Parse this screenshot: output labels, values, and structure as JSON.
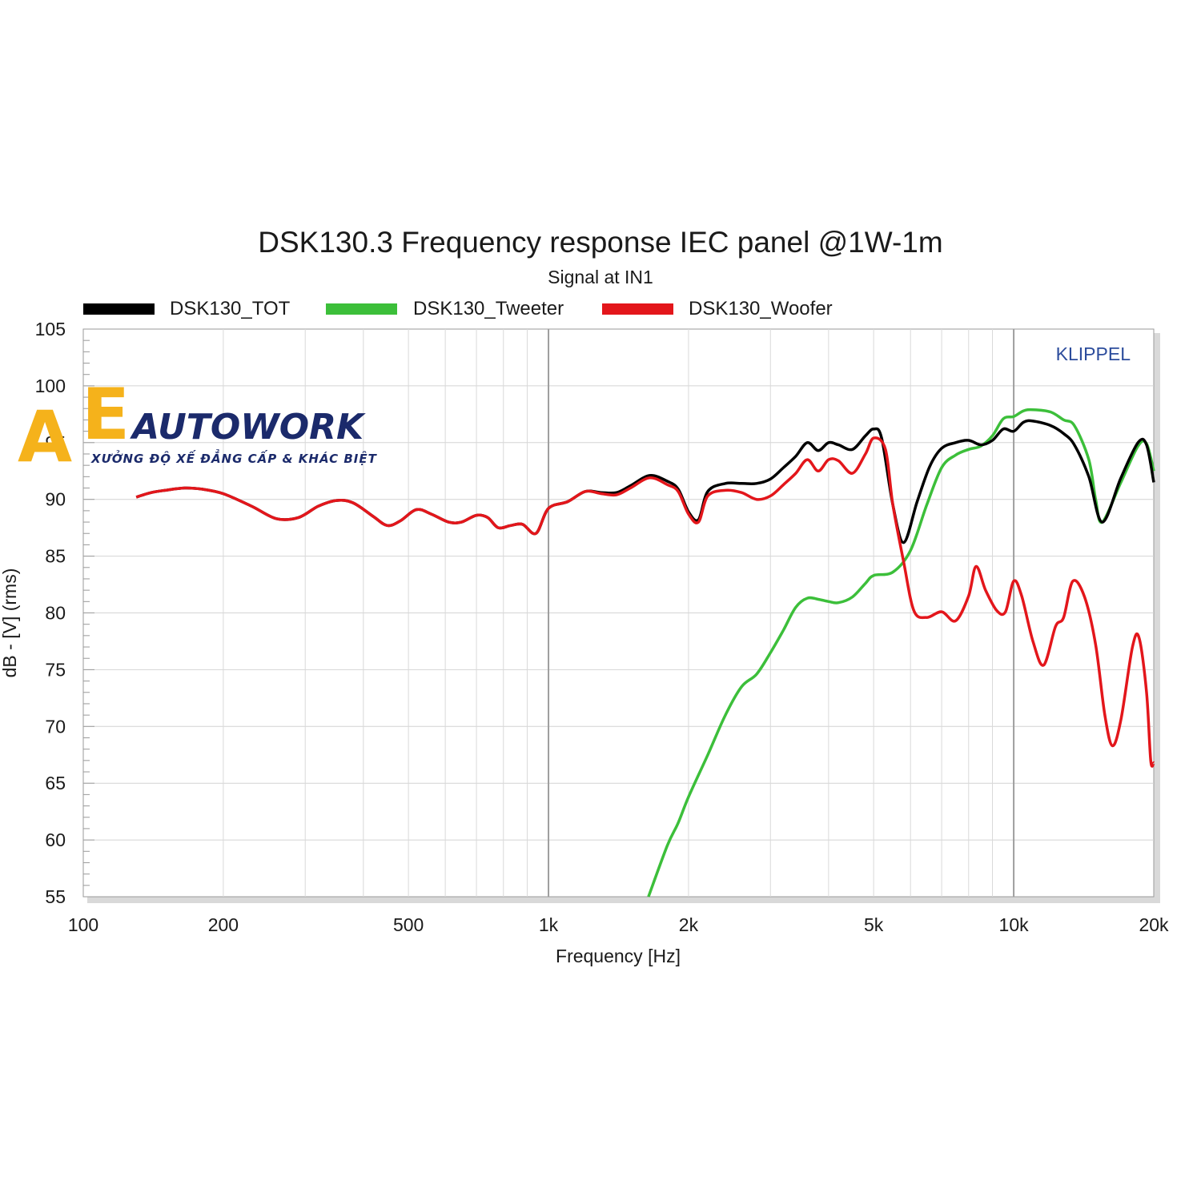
{
  "chart_data": {
    "type": "line",
    "title": "DSK130.3 Frequency response IEC panel @1W-1m",
    "subtitle": "Signal at IN1",
    "xlabel": "Frequency [Hz]",
    "ylabel": "dB - [V]  (rms)",
    "x_scale": "log",
    "xlim": [
      100,
      20000
    ],
    "ylim": [
      55,
      105
    ],
    "x_ticks": [
      100,
      200,
      500,
      1000,
      2000,
      5000,
      10000,
      20000
    ],
    "x_tick_labels": [
      "100",
      "200",
      "500",
      "1k",
      "2k",
      "5k",
      "10k",
      "20k"
    ],
    "y_ticks": [
      55,
      60,
      65,
      70,
      75,
      80,
      85,
      90,
      95,
      100,
      105
    ],
    "y_tick_labels": [
      "55",
      "60",
      "65",
      "70",
      "75",
      "80",
      "85",
      "90",
      "95",
      "100",
      "105"
    ],
    "grid": true,
    "legend_position": "top",
    "annotation": "KLIPPEL",
    "series": [
      {
        "name": "DSK130_TOT",
        "color": "#000000",
        "points": [
          [
            130,
            90.2
          ],
          [
            140,
            90.6
          ],
          [
            150,
            90.8
          ],
          [
            165,
            91.0
          ],
          [
            180,
            90.9
          ],
          [
            200,
            90.5
          ],
          [
            230,
            89.4
          ],
          [
            260,
            88.3
          ],
          [
            290,
            88.4
          ],
          [
            320,
            89.4
          ],
          [
            350,
            89.9
          ],
          [
            380,
            89.7
          ],
          [
            420,
            88.5
          ],
          [
            450,
            87.7
          ],
          [
            480,
            88.1
          ],
          [
            520,
            89.1
          ],
          [
            560,
            88.7
          ],
          [
            610,
            88.0
          ],
          [
            650,
            88.0
          ],
          [
            700,
            88.6
          ],
          [
            740,
            88.4
          ],
          [
            780,
            87.5
          ],
          [
            830,
            87.7
          ],
          [
            880,
            87.8
          ],
          [
            940,
            87.0
          ],
          [
            1000,
            89.2
          ],
          [
            1100,
            89.8
          ],
          [
            1200,
            90.7
          ],
          [
            1300,
            90.6
          ],
          [
            1400,
            90.6
          ],
          [
            1500,
            91.2
          ],
          [
            1650,
            92.1
          ],
          [
            1800,
            91.6
          ],
          [
            1900,
            90.9
          ],
          [
            2000,
            88.9
          ],
          [
            2100,
            88.2
          ],
          [
            2200,
            90.7
          ],
          [
            2400,
            91.4
          ],
          [
            2600,
            91.4
          ],
          [
            2800,
            91.4
          ],
          [
            3000,
            91.8
          ],
          [
            3200,
            92.8
          ],
          [
            3400,
            93.8
          ],
          [
            3600,
            95.0
          ],
          [
            3800,
            94.3
          ],
          [
            4000,
            95.0
          ],
          [
            4200,
            94.8
          ],
          [
            4500,
            94.4
          ],
          [
            4800,
            95.6
          ],
          [
            5000,
            96.2
          ],
          [
            5200,
            95.4
          ],
          [
            5500,
            89.5
          ],
          [
            5800,
            86.2
          ],
          [
            6200,
            89.8
          ],
          [
            6600,
            92.9
          ],
          [
            7000,
            94.5
          ],
          [
            7500,
            95.0
          ],
          [
            8000,
            95.2
          ],
          [
            8500,
            94.8
          ],
          [
            9000,
            95.2
          ],
          [
            9500,
            96.2
          ],
          [
            10000,
            96.0
          ],
          [
            10500,
            96.8
          ],
          [
            11000,
            96.9
          ],
          [
            12000,
            96.5
          ],
          [
            12800,
            95.8
          ],
          [
            13500,
            94.8
          ],
          [
            14500,
            92.0
          ],
          [
            15500,
            88.0
          ],
          [
            17000,
            91.9
          ],
          [
            18500,
            95.0
          ],
          [
            19300,
            94.8
          ],
          [
            20000,
            91.5
          ]
        ]
      },
      {
        "name": "DSK130_Tweeter",
        "color": "#3cbf3a",
        "points": [
          [
            1640,
            55.0
          ],
          [
            1800,
            59.5
          ],
          [
            1900,
            61.5
          ],
          [
            2000,
            63.8
          ],
          [
            2200,
            67.5
          ],
          [
            2400,
            71.0
          ],
          [
            2600,
            73.5
          ],
          [
            2800,
            74.6
          ],
          [
            3000,
            76.5
          ],
          [
            3200,
            78.5
          ],
          [
            3400,
            80.5
          ],
          [
            3600,
            81.3
          ],
          [
            3800,
            81.2
          ],
          [
            4000,
            81.0
          ],
          [
            4200,
            80.9
          ],
          [
            4500,
            81.4
          ],
          [
            4800,
            82.6
          ],
          [
            5000,
            83.3
          ],
          [
            5500,
            83.6
          ],
          [
            6000,
            85.5
          ],
          [
            6500,
            89.5
          ],
          [
            7000,
            92.8
          ],
          [
            7500,
            93.9
          ],
          [
            8000,
            94.4
          ],
          [
            8500,
            94.7
          ],
          [
            9000,
            95.6
          ],
          [
            9500,
            97.1
          ],
          [
            10000,
            97.3
          ],
          [
            10500,
            97.8
          ],
          [
            11000,
            97.9
          ],
          [
            12000,
            97.7
          ],
          [
            12800,
            97.0
          ],
          [
            13500,
            96.5
          ],
          [
            14500,
            93.5
          ],
          [
            15000,
            90.0
          ],
          [
            15500,
            88.0
          ],
          [
            17000,
            91.5
          ],
          [
            18500,
            94.7
          ],
          [
            19300,
            94.9
          ],
          [
            20000,
            92.5
          ]
        ]
      },
      {
        "name": "DSK130_Woofer",
        "color": "#e3161b",
        "points": [
          [
            130,
            90.2
          ],
          [
            140,
            90.6
          ],
          [
            150,
            90.8
          ],
          [
            165,
            91.0
          ],
          [
            180,
            90.9
          ],
          [
            200,
            90.5
          ],
          [
            230,
            89.4
          ],
          [
            260,
            88.3
          ],
          [
            290,
            88.4
          ],
          [
            320,
            89.4
          ],
          [
            350,
            89.9
          ],
          [
            380,
            89.7
          ],
          [
            420,
            88.5
          ],
          [
            450,
            87.7
          ],
          [
            480,
            88.1
          ],
          [
            520,
            89.1
          ],
          [
            560,
            88.7
          ],
          [
            610,
            88.0
          ],
          [
            650,
            88.0
          ],
          [
            700,
            88.6
          ],
          [
            740,
            88.4
          ],
          [
            780,
            87.5
          ],
          [
            830,
            87.7
          ],
          [
            880,
            87.8
          ],
          [
            940,
            87.0
          ],
          [
            1000,
            89.2
          ],
          [
            1100,
            89.8
          ],
          [
            1200,
            90.7
          ],
          [
            1300,
            90.5
          ],
          [
            1400,
            90.4
          ],
          [
            1500,
            91.0
          ],
          [
            1650,
            91.9
          ],
          [
            1800,
            91.3
          ],
          [
            1900,
            90.7
          ],
          [
            2000,
            88.7
          ],
          [
            2100,
            88.0
          ],
          [
            2200,
            90.3
          ],
          [
            2400,
            90.8
          ],
          [
            2600,
            90.6
          ],
          [
            2800,
            90.0
          ],
          [
            3000,
            90.3
          ],
          [
            3200,
            91.3
          ],
          [
            3400,
            92.3
          ],
          [
            3600,
            93.5
          ],
          [
            3800,
            92.5
          ],
          [
            4000,
            93.5
          ],
          [
            4200,
            93.4
          ],
          [
            4500,
            92.3
          ],
          [
            4800,
            94.0
          ],
          [
            5000,
            95.4
          ],
          [
            5300,
            94.4
          ],
          [
            5500,
            89.5
          ],
          [
            5800,
            84.5
          ],
          [
            6100,
            80.2
          ],
          [
            6500,
            79.6
          ],
          [
            7000,
            80.1
          ],
          [
            7500,
            79.3
          ],
          [
            8000,
            81.5
          ],
          [
            8300,
            84.1
          ],
          [
            8700,
            82.0
          ],
          [
            9200,
            80.2
          ],
          [
            9600,
            80.1
          ],
          [
            10000,
            82.8
          ],
          [
            10400,
            81.5
          ],
          [
            11000,
            77.5
          ],
          [
            11600,
            75.4
          ],
          [
            12300,
            78.8
          ],
          [
            12800,
            79.6
          ],
          [
            13400,
            82.8
          ],
          [
            14200,
            81.4
          ],
          [
            15000,
            77.2
          ],
          [
            15700,
            71.0
          ],
          [
            16300,
            68.3
          ],
          [
            17000,
            70.6
          ],
          [
            18000,
            77.0
          ],
          [
            18600,
            77.8
          ],
          [
            19300,
            73.0
          ],
          [
            19700,
            67.0
          ],
          [
            20000,
            66.8
          ]
        ]
      }
    ]
  },
  "watermark": {
    "brand": "AUTOWORK",
    "tagline": "XƯỞNG ĐỘ XẾ ĐẲNG CẤP & KHÁC BIỆT",
    "letters": [
      "A",
      "E"
    ],
    "colors": {
      "a": "#f5b21b",
      "e": "#f5b21b",
      "word": "#1b2a6b"
    }
  }
}
